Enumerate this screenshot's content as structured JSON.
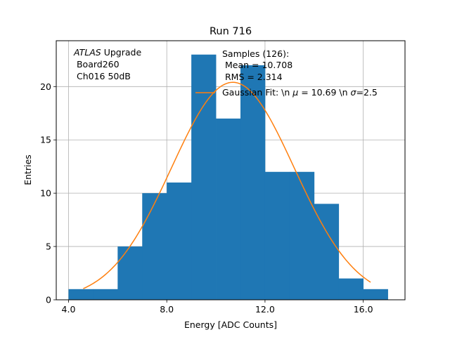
{
  "chart_data": {
    "type": "bar",
    "title": "Run 716",
    "xlabel": "Energy [ADC Counts]",
    "ylabel": "Entries",
    "xlim": [
      3.5,
      17.7
    ],
    "ylim": [
      0,
      24.3
    ],
    "grid": true,
    "x_ticks": [
      4.0,
      8.0,
      12.0,
      16.0
    ],
    "x_tick_labels": [
      "4.0",
      "8.0",
      "12.0",
      "16.0"
    ],
    "y_ticks": [
      0,
      5,
      10,
      15,
      20
    ],
    "y_tick_labels": [
      "0",
      "5",
      "10",
      "15",
      "20"
    ],
    "histogram": {
      "name": "Samples (126)",
      "bin_edges": [
        4.0,
        5.0,
        6.0,
        7.0,
        8.0,
        9.0,
        10.0,
        11.0,
        12.0,
        13.0,
        14.0,
        15.0,
        16.0,
        17.0
      ],
      "counts": [
        1,
        1,
        5,
        10,
        11,
        23,
        17,
        22,
        12,
        12,
        9,
        2,
        1
      ],
      "color": "#1f77b4"
    },
    "fit": {
      "name": "Gaussian Fit",
      "mu": 10.69,
      "sigma": 2.5,
      "amplitude": 20.4,
      "x_range": [
        4.6,
        16.3
      ],
      "color": "#ff7f0e"
    },
    "annotations": {
      "atlas_line": {
        "italic": "ATLAS",
        "rest": " Upgrade"
      },
      "board_line": " Board260",
      "channel_line": " Ch016 50dB",
      "samples_line": "Samples (126):",
      "mean_line": " Mean = 10.708",
      "rms_line": " RMS = 2.314",
      "fit_legend": {
        "before_mu": "Gaussian Fit: \\n ",
        "mu_symbol": "μ",
        "mid": " = 10.69 \\n ",
        "sigma_symbol": "σ",
        "after_sigma": "=2.5"
      }
    }
  }
}
